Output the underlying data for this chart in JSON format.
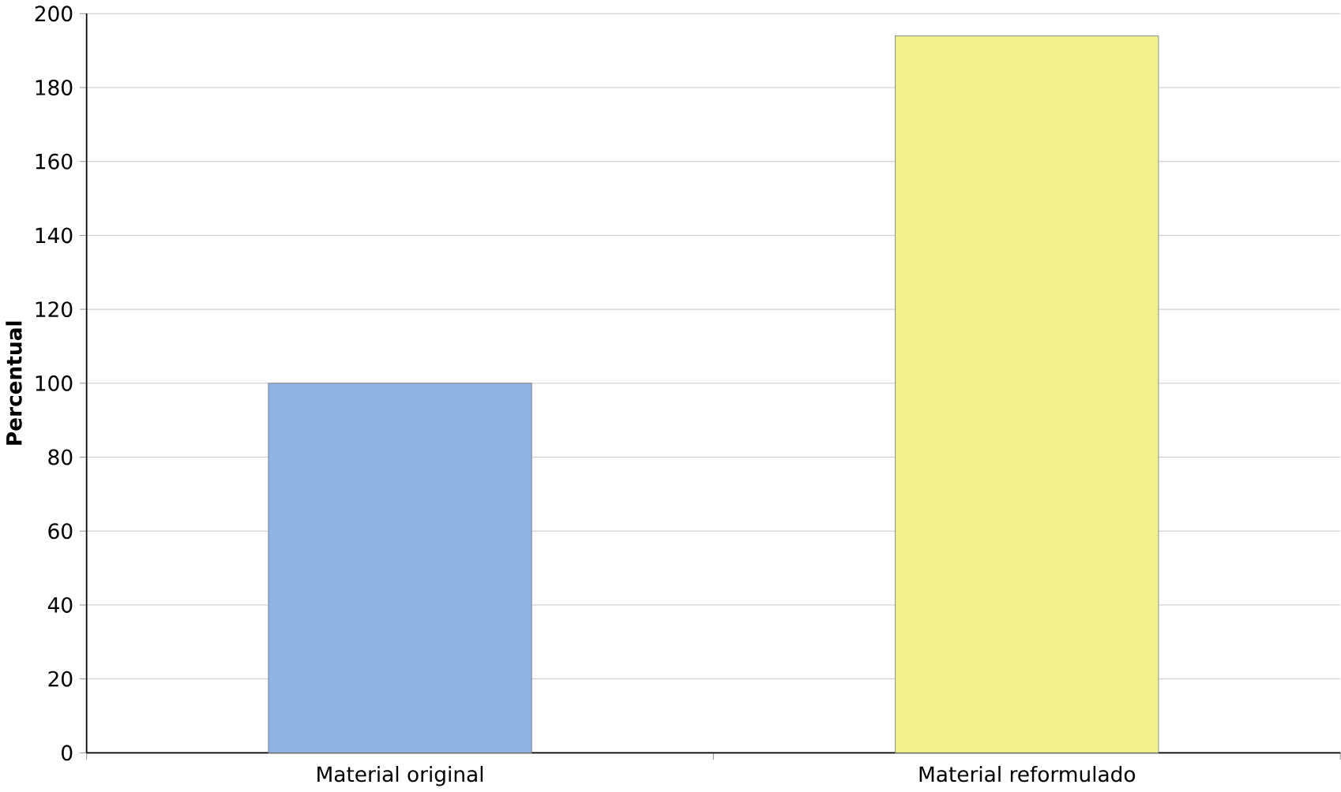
{
  "chart_data": {
    "type": "bar",
    "ylabel": "Percentual",
    "categories": [
      "Material original",
      "Material reformulado"
    ],
    "values": [
      100,
      194
    ],
    "colors": [
      "#8db4e2",
      "#f0f08c"
    ],
    "ylim": [
      0,
      200
    ],
    "yticks": [
      0,
      20,
      40,
      60,
      80,
      100,
      120,
      140,
      160,
      180,
      200
    ],
    "grid": "y"
  }
}
